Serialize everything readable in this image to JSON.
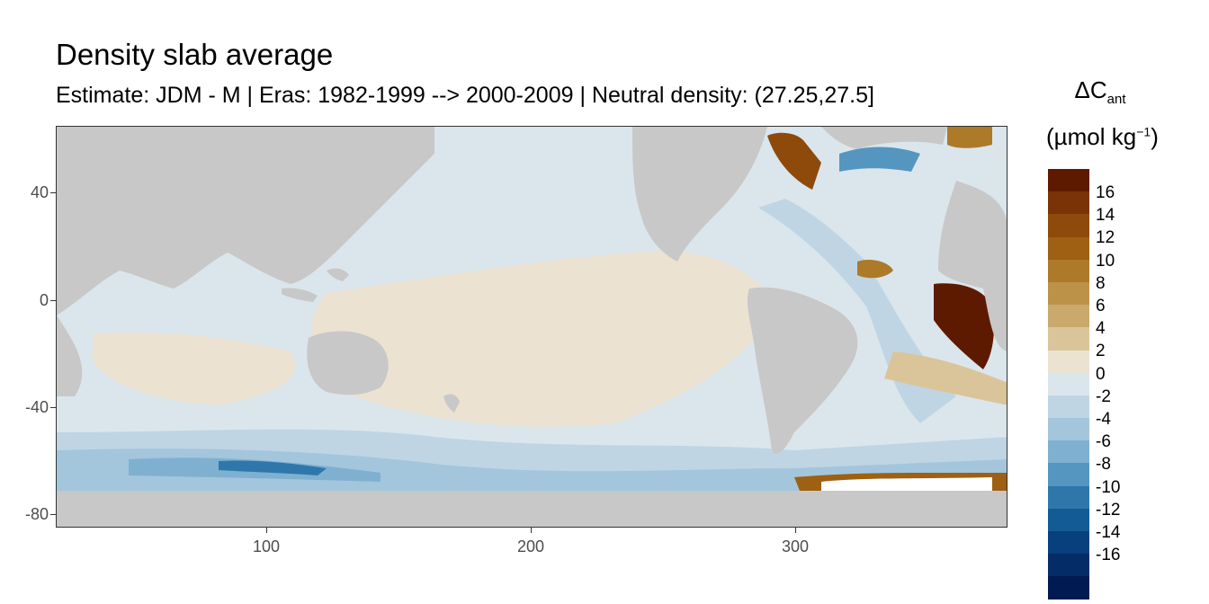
{
  "title": "Density slab average",
  "subtitle": "Estimate: JDM - M | Eras: 1982-1999 --> 2000-2009 | Neutral density: (27.25,27.5]",
  "legend": {
    "title_main": "ΔC",
    "title_sub": "ant",
    "unit_prefix": "(µmol kg",
    "unit_exp": "−1",
    "unit_suffix": ")",
    "labels": [
      "16",
      "14",
      "12",
      "10",
      "8",
      "6",
      "4",
      "2",
      "0",
      "-2",
      "-4",
      "-6",
      "-8",
      "-10",
      "-12",
      "-14",
      "-16"
    ],
    "colors": [
      "#5e1a00",
      "#7a3306",
      "#8e4a0b",
      "#9e6012",
      "#ad7a2a",
      "#bc9248",
      "#c9aa6c",
      "#dac59a",
      "#ebe2d2",
      "#dbe6ec",
      "#bfd5e4",
      "#a3c6dc",
      "#7fb0d0",
      "#5596c0",
      "#2f77ab",
      "#135b95",
      "#07407c",
      "#042c67",
      "#021a52"
    ]
  },
  "axes": {
    "x_ticks": [
      "100",
      "200",
      "300"
    ],
    "y_ticks": [
      "40",
      "0",
      "-40",
      "-80"
    ]
  },
  "colors": {
    "land": "#c8c8c8",
    "no_data": "#ffffff"
  }
}
